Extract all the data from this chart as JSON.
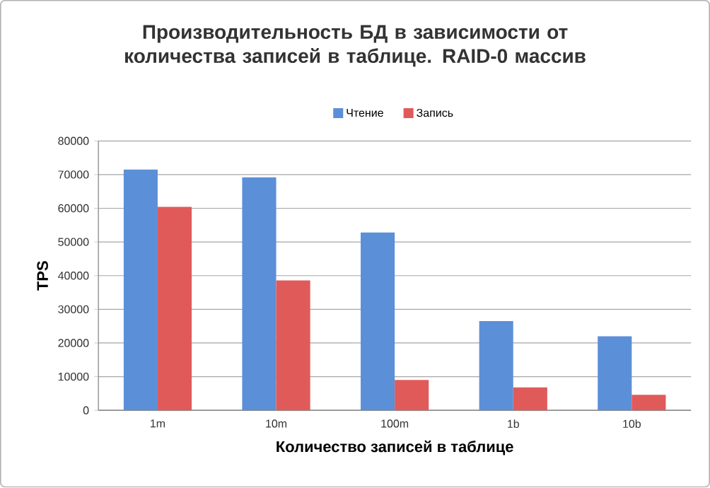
{
  "chart_data": {
    "type": "bar",
    "title": "Производительность БД в зависимости от количества записей в таблице. RAID-0 массив",
    "xlabel": "Количество записей в таблице",
    "ylabel": "TPS",
    "categories": [
      "1m",
      "10m",
      "100m",
      "1b",
      "10b"
    ],
    "series": [
      {
        "name": "Чтение",
        "color": "#5b8fd8",
        "values": [
          71500,
          69200,
          52800,
          26500,
          22000
        ]
      },
      {
        "name": "Запись",
        "color": "#e05a5a",
        "values": [
          60400,
          38600,
          9000,
          6800,
          4600
        ]
      }
    ],
    "ylim": [
      0,
      80000
    ],
    "yticks": [
      0,
      10000,
      20000,
      30000,
      40000,
      50000,
      60000,
      70000,
      80000
    ],
    "grid": "y",
    "legend": "top"
  }
}
